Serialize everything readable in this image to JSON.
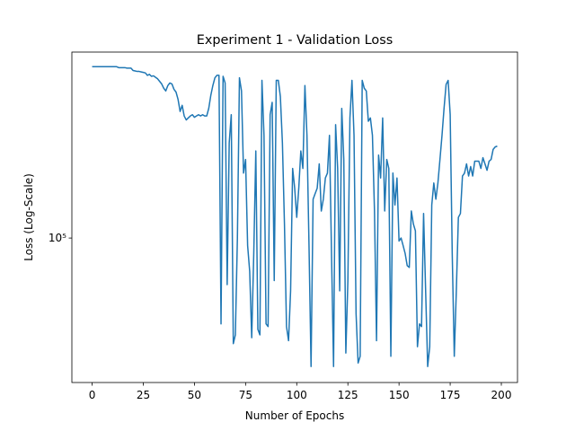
{
  "chart_data": {
    "type": "line",
    "title": "Experiment 1 - Validation Loss",
    "x_label": "Number of Epochs",
    "y_label": "Loss (Log-Scale)",
    "yscale": "log",
    "color": "#1f77b4",
    "xlim": [
      -9.9,
      207.9
    ],
    "xticks": [
      0,
      25,
      50,
      75,
      100,
      125,
      150,
      175,
      200
    ],
    "ylim": [
      37700,
      351000
    ],
    "yticks": [
      {
        "value": 100000,
        "label": "10⁵"
      }
    ],
    "x": [
      0,
      1,
      2,
      3,
      4,
      5,
      6,
      7,
      8,
      9,
      10,
      11,
      12,
      13,
      14,
      15,
      16,
      17,
      18,
      19,
      20,
      21,
      22,
      23,
      24,
      25,
      26,
      27,
      28,
      29,
      30,
      31,
      32,
      33,
      34,
      35,
      36,
      37,
      38,
      39,
      40,
      41,
      42,
      43,
      44,
      45,
      46,
      47,
      48,
      49,
      50,
      51,
      52,
      53,
      54,
      55,
      56,
      57,
      58,
      59,
      60,
      61,
      62,
      63,
      64,
      65,
      66,
      67,
      68,
      69,
      70,
      71,
      72,
      73,
      74,
      75,
      76,
      77,
      78,
      79,
      80,
      81,
      82,
      83,
      84,
      85,
      86,
      87,
      88,
      89,
      90,
      91,
      92,
      93,
      94,
      95,
      96,
      97,
      98,
      99,
      100,
      101,
      102,
      103,
      104,
      105,
      106,
      107,
      108,
      109,
      110,
      111,
      112,
      113,
      114,
      115,
      116,
      117,
      118,
      119,
      120,
      121,
      122,
      123,
      124,
      125,
      126,
      127,
      128,
      129,
      130,
      131,
      132,
      133,
      134,
      135,
      136,
      137,
      138,
      139,
      140,
      141,
      142,
      143,
      144,
      145,
      146,
      147,
      148,
      149,
      150,
      151,
      152,
      153,
      154,
      155,
      156,
      157,
      158,
      159,
      160,
      161,
      162,
      163,
      164,
      165,
      166,
      167,
      168,
      169,
      170,
      171,
      172,
      173,
      174,
      175,
      176,
      177,
      178,
      179,
      180,
      181,
      182,
      183,
      184,
      185,
      186,
      187,
      188,
      189,
      190,
      191,
      192,
      193,
      194,
      195,
      196,
      197,
      198
    ],
    "values": [
      318000,
      318000,
      318000,
      318000,
      318000,
      318000,
      318000,
      318000,
      318000,
      318000,
      318000,
      318000,
      318000,
      316000,
      316000,
      316000,
      316000,
      315000,
      315000,
      315000,
      310000,
      309000,
      308000,
      308000,
      307000,
      306000,
      305000,
      300000,
      302000,
      298000,
      299000,
      296000,
      293000,
      288000,
      283000,
      275000,
      270000,
      280000,
      285000,
      283000,
      273000,
      268000,
      255000,
      235000,
      245000,
      228000,
      222000,
      225000,
      228000,
      230000,
      226000,
      228000,
      230000,
      228000,
      230000,
      228000,
      228000,
      240000,
      262000,
      280000,
      295000,
      300000,
      300000,
      56000,
      298000,
      285000,
      73000,
      190000,
      230000,
      49000,
      52000,
      100000,
      295000,
      270000,
      155000,
      170000,
      95000,
      80000,
      51000,
      90000,
      180000,
      54000,
      52000,
      290000,
      200000,
      56000,
      55000,
      230000,
      250000,
      75000,
      290000,
      290000,
      260000,
      190000,
      110000,
      55000,
      50000,
      70000,
      160000,
      140000,
      115000,
      140000,
      180000,
      160000,
      280000,
      200000,
      95000,
      42000,
      130000,
      135000,
      140000,
      165000,
      120000,
      130000,
      150000,
      155000,
      200000,
      90000,
      42000,
      215000,
      160000,
      70000,
      240000,
      170000,
      46000,
      75000,
      225000,
      290000,
      200000,
      60000,
      43000,
      45000,
      290000,
      275000,
      270000,
      220000,
      225000,
      200000,
      120000,
      50000,
      175000,
      150000,
      225000,
      120000,
      170000,
      160000,
      45000,
      155000,
      125000,
      150000,
      98000,
      100000,
      95000,
      90000,
      83000,
      82000,
      120000,
      110000,
      105000,
      48000,
      56000,
      55000,
      118000,
      70000,
      42000,
      48000,
      125000,
      145000,
      130000,
      145000,
      170000,
      200000,
      240000,
      282000,
      290000,
      230000,
      90000,
      45000,
      70000,
      115000,
      118000,
      152000,
      155000,
      165000,
      152000,
      162000,
      152000,
      168000,
      168000,
      168000,
      160000,
      172000,
      165000,
      158000,
      168000,
      170000,
      182000,
      185000,
      186000
    ]
  }
}
